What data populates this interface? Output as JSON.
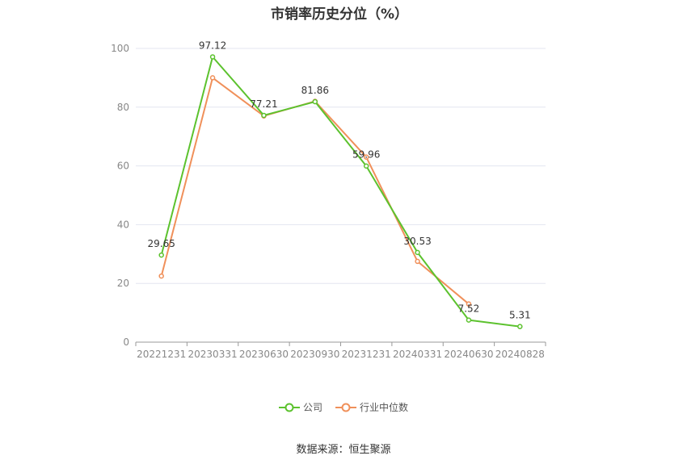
{
  "chart_data": {
    "type": "line",
    "title": "市销率历史分位（%）",
    "categories": [
      "20221231",
      "20230331",
      "20230630",
      "20230930",
      "20231231",
      "20240331",
      "20240630",
      "20240828"
    ],
    "series": [
      {
        "name": "公司",
        "color": "#5cc22e",
        "values": [
          29.65,
          97.12,
          77.21,
          81.86,
          59.96,
          30.53,
          7.52,
          5.31
        ]
      },
      {
        "name": "行业中位数",
        "color": "#f0905a",
        "values": [
          22.5,
          90.0,
          77.0,
          82.0,
          63.0,
          27.5,
          13.0,
          null
        ]
      }
    ],
    "data_labels": [
      "29.65",
      "97.12",
      "77.21",
      "81.86",
      "59.96",
      "30.53",
      "7.52",
      "5.31"
    ],
    "ylim": [
      0,
      100
    ],
    "yticks": [
      0,
      20,
      40,
      60,
      80,
      100
    ],
    "grid": true,
    "legend": "bottom-center"
  },
  "source": "数据来源：恒生聚源"
}
